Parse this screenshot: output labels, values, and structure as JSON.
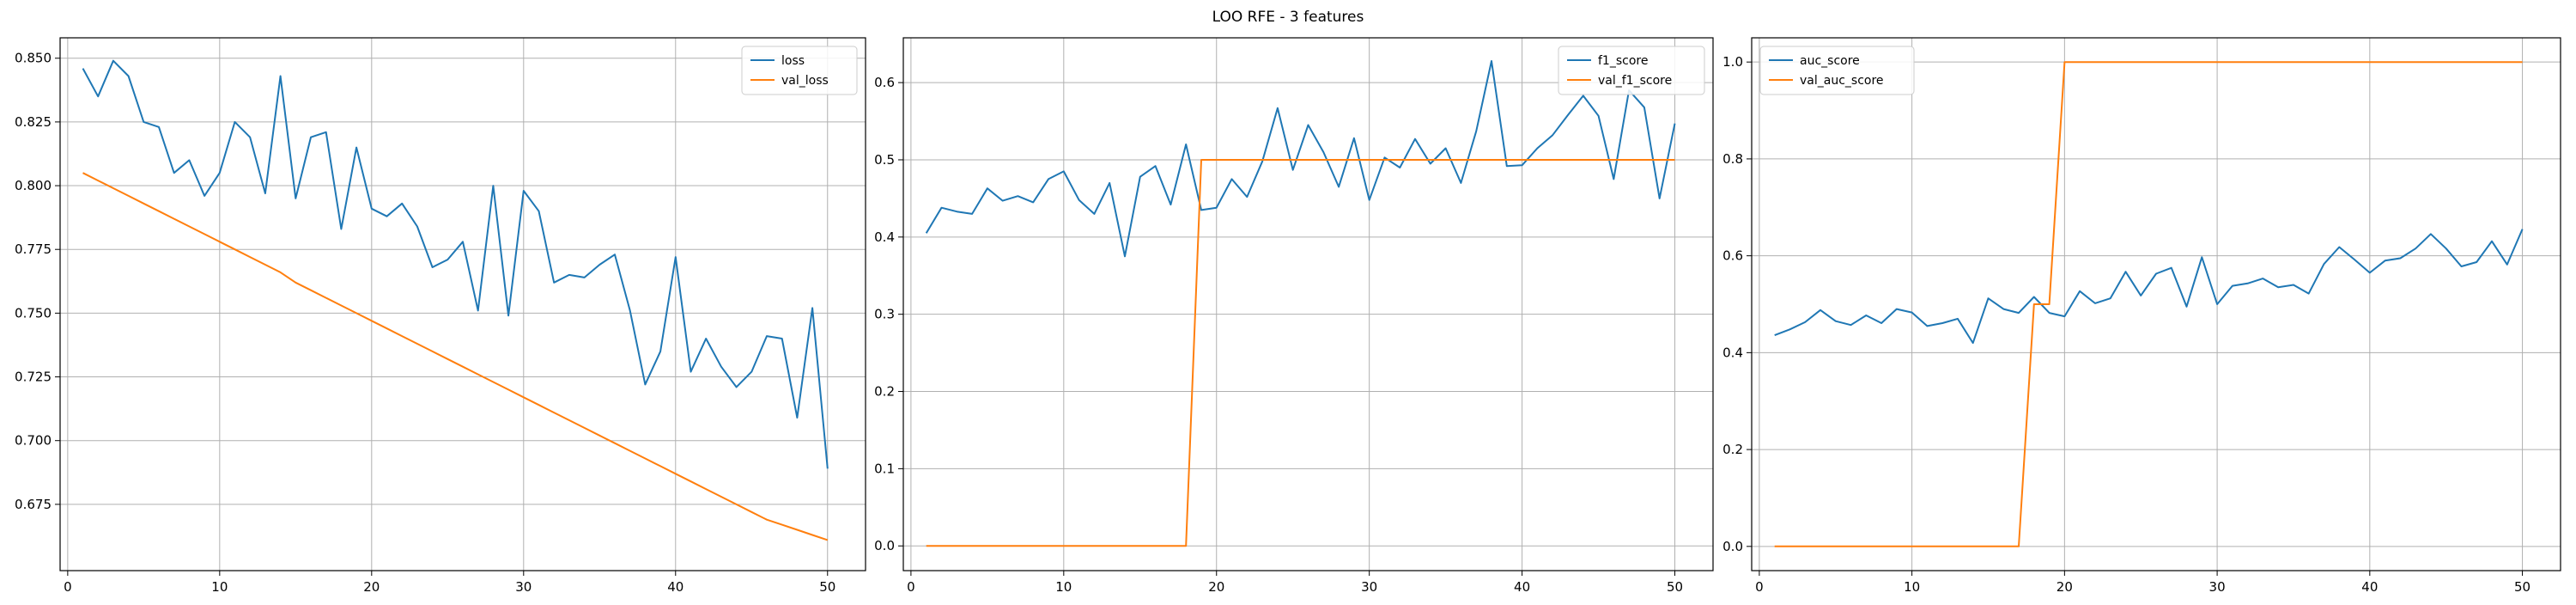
{
  "figure": {
    "suptitle": "LOO RFE - 3 features"
  },
  "colors": {
    "series1": "#1f77b4",
    "series2": "#ff7f0e",
    "grid": "#b0b0b0",
    "axis": "#000000"
  },
  "chart_data": [
    {
      "type": "line",
      "grid": true,
      "legend_position": "top-right",
      "xlim": [
        -0.5,
        52.5
      ],
      "ylim": [
        0.649,
        0.858
      ],
      "x_ticks": [
        0,
        10,
        20,
        30,
        40,
        50
      ],
      "y_ticks": [
        0.675,
        0.7,
        0.725,
        0.75,
        0.775,
        0.8,
        0.825,
        0.85
      ],
      "y_tick_labels": [
        "0.675",
        "0.700",
        "0.725",
        "0.750",
        "0.775",
        "0.800",
        "0.825",
        "0.850"
      ],
      "x": [
        1,
        2,
        3,
        4,
        5,
        6,
        7,
        8,
        9,
        10,
        11,
        12,
        13,
        14,
        15,
        16,
        17,
        18,
        19,
        20,
        21,
        22,
        23,
        24,
        25,
        26,
        27,
        28,
        29,
        30,
        31,
        32,
        33,
        34,
        35,
        36,
        37,
        38,
        39,
        40,
        41,
        42,
        43,
        44,
        45,
        46,
        47,
        48,
        49,
        50
      ],
      "series": [
        {
          "name": "loss",
          "values": [
            0.846,
            0.835,
            0.849,
            0.843,
            0.825,
            0.823,
            0.805,
            0.81,
            0.796,
            0.805,
            0.825,
            0.819,
            0.797,
            0.843,
            0.795,
            0.819,
            0.821,
            0.783,
            0.815,
            0.791,
            0.788,
            0.793,
            0.784,
            0.768,
            0.771,
            0.778,
            0.751,
            0.8,
            0.749,
            0.798,
            0.79,
            0.762,
            0.765,
            0.764,
            0.769,
            0.773,
            0.751,
            0.722,
            0.735,
            0.772,
            0.727,
            0.74,
            0.729,
            0.721,
            0.727,
            0.741,
            0.74,
            0.709,
            0.752,
            0.689
          ]
        },
        {
          "name": "val_loss",
          "values": [
            0.805,
            0.802,
            0.799,
            0.796,
            0.793,
            0.79,
            0.787,
            0.784,
            0.781,
            0.778,
            0.775,
            0.772,
            0.769,
            0.766,
            0.762,
            0.759,
            0.756,
            0.753,
            0.75,
            0.747,
            0.744,
            0.741,
            0.738,
            0.735,
            0.732,
            0.729,
            0.726,
            0.723,
            0.72,
            0.717,
            0.714,
            0.711,
            0.708,
            0.705,
            0.702,
            0.699,
            0.696,
            0.693,
            0.69,
            0.687,
            0.684,
            0.681,
            0.678,
            0.675,
            0.672,
            0.669,
            0.667,
            0.665,
            0.663,
            0.661
          ]
        }
      ]
    },
    {
      "type": "line",
      "grid": true,
      "legend_position": "top-right",
      "xlim": [
        -0.5,
        52.5
      ],
      "ylim": [
        -0.032,
        0.658
      ],
      "x_ticks": [
        0,
        10,
        20,
        30,
        40,
        50
      ],
      "y_ticks": [
        0.0,
        0.1,
        0.2,
        0.3,
        0.4,
        0.5,
        0.6
      ],
      "y_tick_labels": [
        "0.0",
        "0.1",
        "0.2",
        "0.3",
        "0.4",
        "0.5",
        "0.6"
      ],
      "x": [
        1,
        2,
        3,
        4,
        5,
        6,
        7,
        8,
        9,
        10,
        11,
        12,
        13,
        14,
        15,
        16,
        17,
        18,
        19,
        20,
        21,
        22,
        23,
        24,
        25,
        26,
        27,
        28,
        29,
        30,
        31,
        32,
        33,
        34,
        35,
        36,
        37,
        38,
        39,
        40,
        41,
        42,
        43,
        44,
        45,
        46,
        47,
        48,
        49,
        50
      ],
      "series": [
        {
          "name": "f1_score",
          "values": [
            0.405,
            0.438,
            0.433,
            0.43,
            0.463,
            0.447,
            0.453,
            0.445,
            0.475,
            0.485,
            0.448,
            0.43,
            0.47,
            0.375,
            0.478,
            0.492,
            0.442,
            0.52,
            0.435,
            0.438,
            0.475,
            0.452,
            0.498,
            0.567,
            0.487,
            0.545,
            0.51,
            0.465,
            0.528,
            0.448,
            0.503,
            0.49,
            0.527,
            0.495,
            0.515,
            0.47,
            0.537,
            0.628,
            0.492,
            0.493,
            0.515,
            0.532,
            0.558,
            0.583,
            0.557,
            0.475,
            0.59,
            0.568,
            0.45,
            0.547
          ]
        },
        {
          "name": "val_f1_score",
          "values": [
            0,
            0,
            0,
            0,
            0,
            0,
            0,
            0,
            0,
            0,
            0,
            0,
            0,
            0,
            0,
            0,
            0,
            0,
            0.5,
            0.5,
            0.5,
            0.5,
            0.5,
            0.5,
            0.5,
            0.5,
            0.5,
            0.5,
            0.5,
            0.5,
            0.5,
            0.5,
            0.5,
            0.5,
            0.5,
            0.5,
            0.5,
            0.5,
            0.5,
            0.5,
            0.5,
            0.5,
            0.5,
            0.5,
            0.5,
            0.5,
            0.5,
            0.5,
            0.5,
            0.5
          ]
        }
      ]
    },
    {
      "type": "line",
      "grid": true,
      "legend_position": "top-left",
      "xlim": [
        -0.5,
        52.5
      ],
      "ylim": [
        -0.05,
        1.05
      ],
      "x_ticks": [
        0,
        10,
        20,
        30,
        40,
        50
      ],
      "y_ticks": [
        0.0,
        0.2,
        0.4,
        0.6,
        0.8,
        1.0
      ],
      "y_tick_labels": [
        "0.0",
        "0.2",
        "0.4",
        "0.6",
        "0.8",
        "1.0"
      ],
      "x": [
        1,
        2,
        3,
        4,
        5,
        6,
        7,
        8,
        9,
        10,
        11,
        12,
        13,
        14,
        15,
        16,
        17,
        18,
        19,
        20,
        21,
        22,
        23,
        24,
        25,
        26,
        27,
        28,
        29,
        30,
        31,
        32,
        33,
        34,
        35,
        36,
        37,
        38,
        39,
        40,
        41,
        42,
        43,
        44,
        45,
        46,
        47,
        48,
        49,
        50
      ],
      "series": [
        {
          "name": "auc_score",
          "values": [
            0.436,
            0.448,
            0.463,
            0.488,
            0.465,
            0.457,
            0.477,
            0.461,
            0.49,
            0.483,
            0.455,
            0.461,
            0.47,
            0.42,
            0.512,
            0.49,
            0.482,
            0.515,
            0.482,
            0.475,
            0.527,
            0.502,
            0.512,
            0.567,
            0.518,
            0.563,
            0.575,
            0.495,
            0.597,
            0.5,
            0.538,
            0.543,
            0.553,
            0.535,
            0.54,
            0.522,
            0.583,
            0.618,
            0.592,
            0.565,
            0.59,
            0.595,
            0.615,
            0.645,
            0.615,
            0.578,
            0.587,
            0.63,
            0.582,
            0.655
          ]
        },
        {
          "name": "val_auc_score",
          "values": [
            0,
            0,
            0,
            0,
            0,
            0,
            0,
            0,
            0,
            0,
            0,
            0,
            0,
            0,
            0,
            0,
            0,
            0.5,
            0.5,
            1,
            1,
            1,
            1,
            1,
            1,
            1,
            1,
            1,
            1,
            1,
            1,
            1,
            1,
            1,
            1,
            1,
            1,
            1,
            1,
            1,
            1,
            1,
            1,
            1,
            1,
            1,
            1,
            1,
            1,
            1
          ]
        }
      ]
    }
  ]
}
